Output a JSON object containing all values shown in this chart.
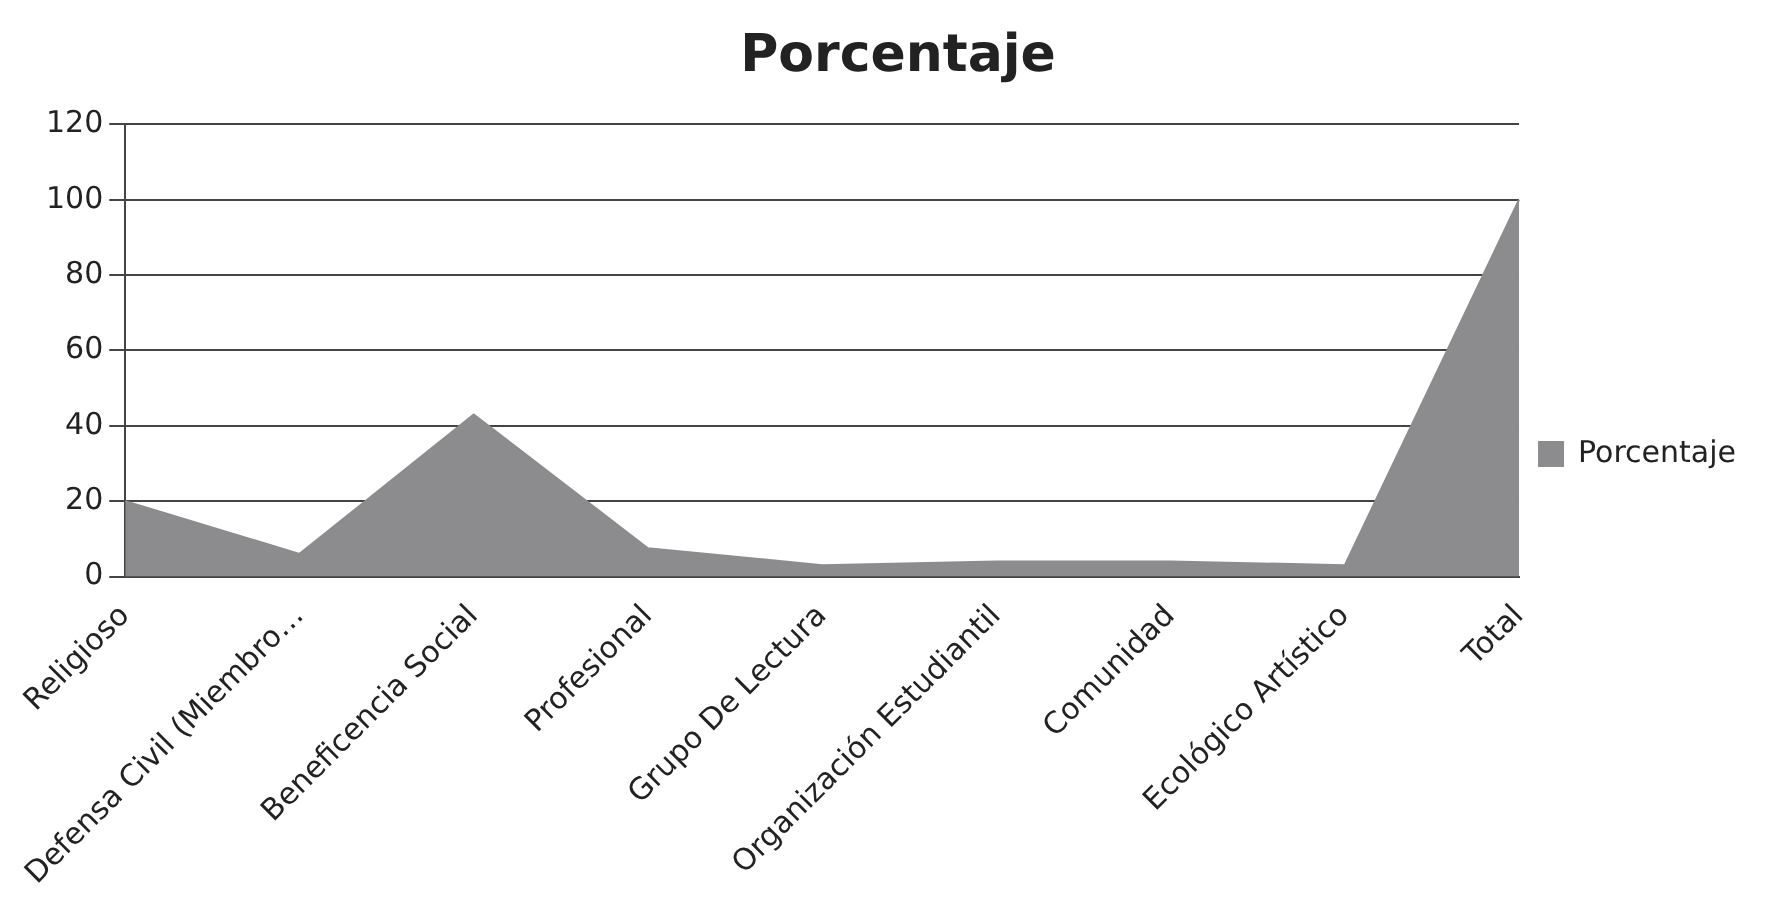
{
  "chart_data": {
    "type": "area",
    "title": "Porcentaje",
    "categories": [
      "Religioso",
      "Defensa Civil (Miembro…",
      "Beneficencia Social",
      "Profesional",
      "Grupo De Lectura",
      "Organización Estudiantil",
      "Comunidad",
      "Ecológico Artístico",
      "Total"
    ],
    "series": [
      {
        "name": "Porcentaje",
        "color": "#8c8c8e",
        "values": [
          20,
          6,
          43,
          7.5,
          3,
          4,
          4,
          3,
          100
        ]
      }
    ],
    "ylim": [
      0,
      120
    ],
    "yticks": [
      0,
      20,
      40,
      60,
      80,
      100,
      120
    ],
    "grid": "y",
    "legend": "right"
  }
}
